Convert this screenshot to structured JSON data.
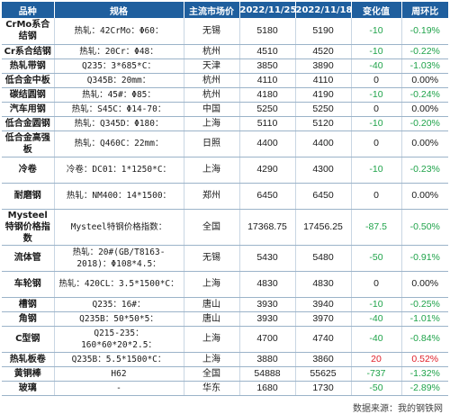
{
  "headers": [
    "品种",
    "规格",
    "主流市场价",
    "2022/11/25",
    "2022/11/18",
    "变化值",
    "周环比"
  ],
  "rows": [
    {
      "name": "CrMo系合结钢",
      "spec": "热轧：42CrMo：Φ60：",
      "market": "无锡",
      "p1": "5180",
      "p2": "5190",
      "chg": "-10",
      "pct": "-0.19%",
      "dir": "down"
    },
    {
      "name": "Cr系合结钢",
      "spec": "热轧：20Cr：Φ48：",
      "market": "杭州",
      "p1": "4510",
      "p2": "4520",
      "chg": "-10",
      "pct": "-0.22%",
      "dir": "down"
    },
    {
      "name": "热轧带钢",
      "spec": "Q235：3*685*C：",
      "market": "天津",
      "p1": "3850",
      "p2": "3890",
      "chg": "-40",
      "pct": "-1.03%",
      "dir": "down"
    },
    {
      "name": "低合金中板",
      "spec": "Q345B：20mm：",
      "market": "杭州",
      "p1": "4110",
      "p2": "4110",
      "chg": "0",
      "pct": "0.00%",
      "dir": "flat"
    },
    {
      "name": "碳结圆钢",
      "spec": "热轧：45#：Φ85：",
      "market": "杭州",
      "p1": "4180",
      "p2": "4190",
      "chg": "-10",
      "pct": "-0.24%",
      "dir": "down"
    },
    {
      "name": "汽车用钢",
      "spec": "热轧：S45C：Φ14-70：",
      "market": "中国",
      "p1": "5250",
      "p2": "5250",
      "chg": "0",
      "pct": "0.00%",
      "dir": "flat"
    },
    {
      "name": "低合金圆钢",
      "spec": "热轧：Q345D：Φ180：",
      "market": "上海",
      "p1": "5110",
      "p2": "5120",
      "chg": "-10",
      "pct": "-0.20%",
      "dir": "down"
    },
    {
      "name": "低合金高强板",
      "spec": "热轧：Q460C：22mm：",
      "market": "日照",
      "p1": "4400",
      "p2": "4400",
      "chg": "0",
      "pct": "0.00%",
      "dir": "flat"
    },
    {
      "name": "冷卷",
      "spec": "冷卷：DC01：1*1250*C：",
      "market": "上海",
      "p1": "4290",
      "p2": "4300",
      "chg": "-10",
      "pct": "-0.23%",
      "dir": "down"
    },
    {
      "name": "耐磨钢",
      "spec": "热轧：NM400：14*1500：",
      "market": "郑州",
      "p1": "6450",
      "p2": "6450",
      "chg": "0",
      "pct": "0.00%",
      "dir": "flat"
    },
    {
      "name": "Mysteel特钢价格指数",
      "spec": "Mysteel特钢价格指数：",
      "market": "全国",
      "p1": "17368.75",
      "p2": "17456.25",
      "chg": "-87.5",
      "pct": "-0.50%",
      "dir": "down"
    },
    {
      "name": "流体管",
      "spec": "热轧：20#(GB/T8163-2018)：Φ108*4.5：",
      "market": "无锡",
      "p1": "5430",
      "p2": "5480",
      "chg": "-50",
      "pct": "-0.91%",
      "dir": "down"
    },
    {
      "name": "车轮钢",
      "spec": "热轧：420CL：3.5*1500*C：",
      "market": "上海",
      "p1": "4830",
      "p2": "4830",
      "chg": "0",
      "pct": "0.00%",
      "dir": "flat"
    },
    {
      "name": "槽钢",
      "spec": "Q235：16#：",
      "market": "唐山",
      "p1": "3930",
      "p2": "3940",
      "chg": "-10",
      "pct": "-0.25%",
      "dir": "down"
    },
    {
      "name": "角钢",
      "spec": "Q235B：50*50*5：",
      "market": "唐山",
      "p1": "3930",
      "p2": "3970",
      "chg": "-40",
      "pct": "-1.01%",
      "dir": "down"
    },
    {
      "name": "C型钢",
      "spec": "Q215-235：160*60*20*2.5：",
      "market": "上海",
      "p1": "4700",
      "p2": "4740",
      "chg": "-40",
      "pct": "-0.84%",
      "dir": "down"
    },
    {
      "name": "热轧板卷",
      "spec": "Q235B：5.5*1500*C：",
      "market": "上海",
      "p1": "3880",
      "p2": "3860",
      "chg": "20",
      "pct": "0.52%",
      "dir": "up"
    },
    {
      "name": "黄铜棒",
      "spec": "H62",
      "market": "全国",
      "p1": "54888",
      "p2": "55625",
      "chg": "-737",
      "pct": "-1.32%",
      "dir": "down"
    },
    {
      "name": "玻璃",
      "spec": "-",
      "market": "华东",
      "p1": "1680",
      "p2": "1730",
      "chg": "-50",
      "pct": "-2.89%",
      "dir": "down"
    }
  ],
  "source": "数据来源：我的钢铁网"
}
